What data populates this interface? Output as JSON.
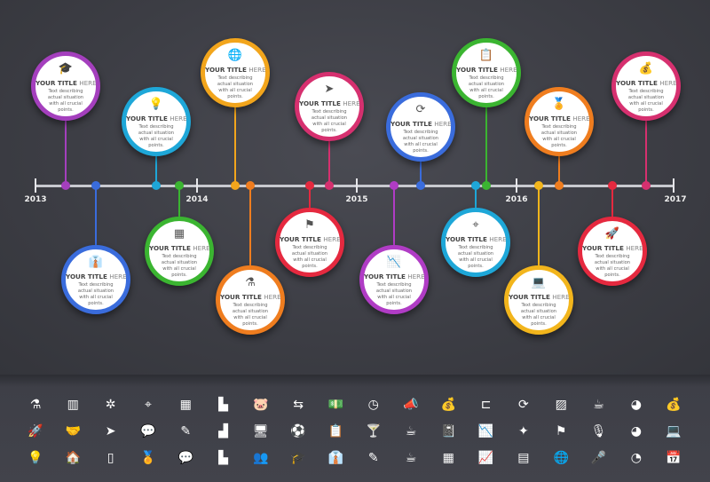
{
  "years": [
    "2013",
    "2014",
    "2015",
    "2016",
    "2017"
  ],
  "card_title_bold": "YOUR TITLE",
  "card_title_light": "HERE",
  "card_text": "Text describing actual situation with all crucial points.",
  "events": [
    {
      "color": "#a43fbd",
      "icon": "graduation-cap",
      "glyph": "🎓",
      "side": "above"
    },
    {
      "color": "#3a6cdc",
      "icon": "tie",
      "glyph": "👔",
      "side": "below"
    },
    {
      "color": "#1ea7d8",
      "icon": "lightbulb",
      "glyph": "💡",
      "side": "above"
    },
    {
      "color": "#3bb531",
      "icon": "abacus",
      "glyph": "▦",
      "side": "below"
    },
    {
      "color": "#f2a51c",
      "icon": "globe",
      "glyph": "🌐",
      "side": "above"
    },
    {
      "color": "#ef7d1f",
      "icon": "flask",
      "glyph": "⚗",
      "side": "below"
    },
    {
      "color": "#e5293f",
      "icon": "flag",
      "glyph": "⚑",
      "side": "below"
    },
    {
      "color": "#d6306f",
      "icon": "paper-plane",
      "glyph": "➤",
      "side": "above"
    },
    {
      "color": "#b03cc5",
      "icon": "line-chart",
      "glyph": "📉",
      "side": "below"
    },
    {
      "color": "#3a6cdc",
      "icon": "refresh",
      "glyph": "⟳",
      "side": "above"
    },
    {
      "color": "#1ea7d8",
      "icon": "target",
      "glyph": "⌖",
      "side": "below"
    },
    {
      "color": "#3bb531",
      "icon": "clipboard",
      "glyph": "📋",
      "side": "above"
    },
    {
      "color": "#f2b51c",
      "icon": "laptop",
      "glyph": "💻",
      "side": "below"
    },
    {
      "color": "#ef7d1f",
      "icon": "award",
      "glyph": "🏅",
      "side": "above"
    },
    {
      "color": "#e5293f",
      "icon": "rocket",
      "glyph": "🚀",
      "side": "below"
    },
    {
      "color": "#d6306f",
      "icon": "money-bag",
      "glyph": "💰",
      "side": "above"
    }
  ],
  "icon_rows": [
    [
      "⚗",
      "▥",
      "✲",
      "⌖",
      "▦",
      "▙",
      "🐷",
      "⇆",
      "💵",
      "◷",
      "📣",
      "💰",
      "⊏",
      "⟳",
      "▨",
      "☕",
      "◕",
      "💰"
    ],
    [
      "🚀",
      "🤝",
      "➤",
      "💬",
      "✎",
      "▟",
      "🖥",
      "⚽",
      "📋",
      "🍸",
      "☕",
      "📓",
      "📉",
      "✦",
      "⚑",
      "🎙",
      "◕",
      "💻"
    ],
    [
      "💡",
      "🏠",
      "▯",
      "🏅",
      "💬",
      "▙",
      "👥",
      "🎓",
      "👔",
      "✎",
      "☕",
      "▦",
      "📈",
      "▤",
      "🌐",
      "🎤",
      "◔",
      "📅"
    ]
  ]
}
